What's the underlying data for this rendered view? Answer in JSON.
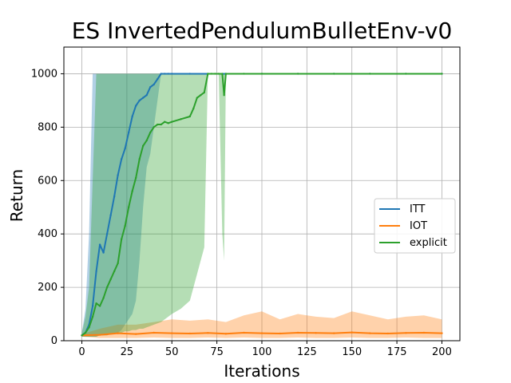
{
  "chart_data": {
    "type": "line",
    "title": "ES InvertedPendulumBulletEnv-v0",
    "xlabel": "Iterations",
    "ylabel": "Return",
    "xlim": [
      -10,
      210
    ],
    "ylim": [
      0,
      1100
    ],
    "xticks": [
      0,
      25,
      50,
      75,
      100,
      125,
      150,
      175,
      200
    ],
    "yticks": [
      0,
      200,
      400,
      600,
      800,
      1000
    ],
    "grid": true,
    "legend_position": "center-right",
    "series": [
      {
        "name": "ITT",
        "color": "#1f77b4",
        "band_opacity": 0.35,
        "x": [
          0,
          2,
          4,
          6,
          8,
          10,
          12,
          14,
          16,
          18,
          20,
          22,
          24,
          26,
          28,
          30,
          32,
          34,
          36,
          38,
          40,
          42,
          44,
          46,
          48,
          50,
          60,
          70,
          80,
          100,
          120,
          140,
          160,
          180,
          200
        ],
        "values": [
          20,
          30,
          60,
          130,
          260,
          360,
          330,
          400,
          470,
          540,
          620,
          680,
          720,
          780,
          840,
          880,
          900,
          910,
          920,
          950,
          960,
          980,
          1000,
          1000,
          1000,
          1000,
          1000,
          1000,
          1000,
          1000,
          1000,
          1000,
          1000,
          1000,
          1000
        ],
        "upper": [
          30,
          120,
          400,
          1000,
          1000,
          1000,
          1000,
          1000,
          1000,
          1000,
          1000,
          1000,
          1000,
          1000,
          1000,
          1000,
          1000,
          1000,
          1000,
          1000,
          1000,
          1000,
          1000,
          1000,
          1000,
          1000,
          1000,
          1000,
          1000,
          1000,
          1000,
          1000,
          1000,
          1000,
          1000
        ],
        "lower": [
          15,
          15,
          15,
          15,
          15,
          20,
          20,
          20,
          25,
          30,
          30,
          40,
          60,
          80,
          100,
          150,
          300,
          500,
          650,
          700,
          800,
          900,
          1000,
          1000,
          1000,
          1000,
          1000,
          1000,
          1000,
          1000,
          1000,
          1000,
          1000,
          1000,
          1000
        ]
      },
      {
        "name": "IOT",
        "color": "#ff7f0e",
        "band_opacity": 0.35,
        "x": [
          0,
          10,
          20,
          30,
          40,
          50,
          60,
          70,
          80,
          90,
          100,
          110,
          120,
          130,
          140,
          150,
          160,
          170,
          180,
          190,
          200
        ],
        "values": [
          20,
          22,
          28,
          25,
          30,
          28,
          27,
          29,
          26,
          30,
          28,
          27,
          30,
          29,
          28,
          31,
          28,
          27,
          29,
          30,
          28
        ],
        "upper": [
          25,
          45,
          60,
          60,
          70,
          80,
          75,
          80,
          70,
          95,
          110,
          80,
          100,
          90,
          85,
          110,
          95,
          80,
          90,
          95,
          80
        ],
        "lower": [
          15,
          10,
          10,
          10,
          12,
          10,
          10,
          12,
          10,
          12,
          10,
          10,
          12,
          10,
          10,
          12,
          10,
          10,
          12,
          10,
          10
        ]
      },
      {
        "name": "explicit",
        "color": "#2ca02c",
        "band_opacity": 0.35,
        "x": [
          0,
          2,
          4,
          6,
          8,
          10,
          12,
          14,
          16,
          18,
          20,
          22,
          24,
          26,
          28,
          30,
          32,
          34,
          36,
          38,
          40,
          42,
          44,
          46,
          48,
          50,
          55,
          60,
          62,
          64,
          66,
          68,
          70,
          72,
          74,
          76,
          78,
          79,
          80,
          90,
          100,
          120,
          140,
          160,
          180,
          200
        ],
        "values": [
          20,
          30,
          50,
          90,
          140,
          130,
          160,
          200,
          230,
          260,
          290,
          380,
          430,
          500,
          560,
          610,
          680,
          730,
          750,
          780,
          800,
          810,
          810,
          820,
          815,
          820,
          830,
          840,
          870,
          910,
          920,
          930,
          1000,
          1000,
          1000,
          1000,
          1000,
          920,
          1000,
          1000,
          1000,
          1000,
          1000,
          1000,
          1000,
          1000
        ],
        "upper": [
          30,
          90,
          200,
          600,
          1000,
          1000,
          1000,
          1000,
          1000,
          1000,
          1000,
          1000,
          1000,
          1000,
          1000,
          1000,
          1000,
          1000,
          1000,
          1000,
          1000,
          1000,
          1000,
          1000,
          1000,
          1000,
          1000,
          1000,
          1000,
          1000,
          1000,
          1000,
          1000,
          1000,
          1000,
          1000,
          1000,
          1000,
          1000,
          1000,
          1000,
          1000,
          1000,
          1000,
          1000,
          1000
        ],
        "lower": [
          15,
          15,
          15,
          15,
          15,
          20,
          20,
          20,
          25,
          25,
          30,
          30,
          35,
          35,
          40,
          40,
          45,
          45,
          50,
          55,
          60,
          65,
          70,
          80,
          90,
          100,
          120,
          150,
          200,
          250,
          300,
          350,
          1000,
          1000,
          1000,
          1000,
          400,
          300,
          1000,
          1000,
          1000,
          1000,
          1000,
          1000,
          1000,
          1000
        ]
      }
    ]
  }
}
